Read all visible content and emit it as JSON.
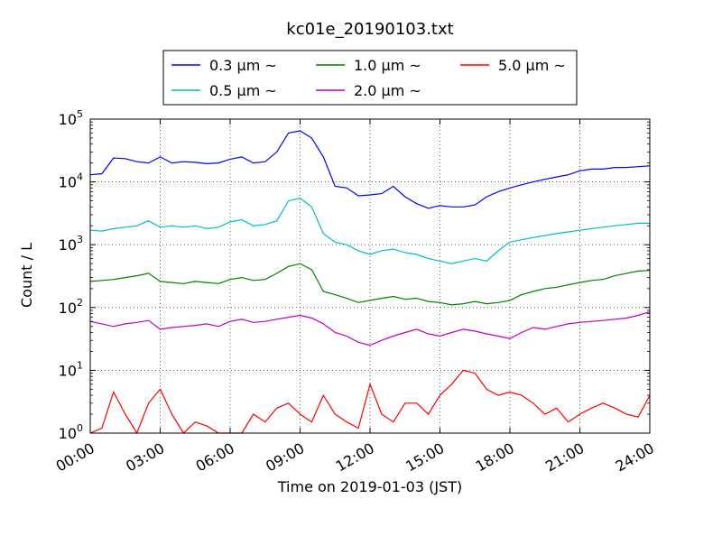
{
  "chart_data": {
    "type": "line",
    "title": "kc01e_20190103.txt",
    "xlabel": "Time on 2019-01-03 (JST)",
    "ylabel": "Count / L",
    "yscale": "log",
    "ylim": [
      1,
      100000
    ],
    "xlim": [
      0,
      24
    ],
    "x_ticks": [
      {
        "value": 0,
        "label": "00:00"
      },
      {
        "value": 3,
        "label": "03:00"
      },
      {
        "value": 6,
        "label": "06:00"
      },
      {
        "value": 9,
        "label": "09:00"
      },
      {
        "value": 12,
        "label": "12:00"
      },
      {
        "value": 15,
        "label": "15:00"
      },
      {
        "value": 18,
        "label": "18:00"
      },
      {
        "value": 21,
        "label": "21:00"
      },
      {
        "value": 24,
        "label": "24:00"
      }
    ],
    "y_ticks": [
      {
        "value": 1,
        "base": "10",
        "exp": "0"
      },
      {
        "value": 10,
        "base": "10",
        "exp": "1"
      },
      {
        "value": 100,
        "base": "10",
        "exp": "2"
      },
      {
        "value": 1000,
        "base": "10",
        "exp": "3"
      },
      {
        "value": 10000,
        "base": "10",
        "exp": "4"
      },
      {
        "value": 100000,
        "base": "10",
        "exp": "5"
      }
    ],
    "grid": true,
    "legend": {
      "placement": "top-center",
      "columns": 3,
      "suffix": "~"
    },
    "series": [
      {
        "name": "0.3 μm",
        "color": "#0000ff",
        "x": [
          0,
          0.5,
          1,
          1.5,
          2,
          2.5,
          3,
          3.5,
          4,
          4.5,
          5,
          5.5,
          6,
          6.5,
          7,
          7.5,
          8,
          8.5,
          9,
          9.5,
          10,
          10.5,
          11,
          11.5,
          12,
          12.5,
          13,
          13.5,
          14,
          14.5,
          15,
          15.5,
          16,
          16.5,
          17,
          17.5,
          18,
          18.5,
          19,
          19.5,
          20,
          20.5,
          21,
          21.5,
          22,
          22.5,
          23,
          23.5,
          24
        ],
        "y": [
          13000,
          13500,
          24000,
          23500,
          21000,
          20000,
          25000,
          20000,
          21000,
          20500,
          19500,
          20000,
          23000,
          25000,
          20000,
          21000,
          30000,
          60000,
          65000,
          50000,
          25000,
          8500,
          8000,
          6000,
          6200,
          6500,
          8500,
          5800,
          4500,
          3800,
          4200,
          4000,
          4000,
          4300,
          5800,
          7000,
          8000,
          9000,
          10000,
          11000,
          12000,
          13000,
          15000,
          16000,
          16000,
          17000,
          17000,
          17500,
          18000
        ]
      },
      {
        "name": "0.5 μm",
        "color": "#00bfbf",
        "x": [
          0,
          0.5,
          1,
          1.5,
          2,
          2.5,
          3,
          3.5,
          4,
          4.5,
          5,
          5.5,
          6,
          6.5,
          7,
          7.5,
          8,
          8.5,
          9,
          9.5,
          10,
          10.5,
          11,
          11.5,
          12,
          12.5,
          13,
          13.5,
          14,
          14.5,
          15,
          15.5,
          16,
          16.5,
          17,
          17.5,
          18,
          18.5,
          19,
          19.5,
          20,
          20.5,
          21,
          21.5,
          22,
          22.5,
          23,
          23.5,
          24
        ],
        "y": [
          1700,
          1650,
          1800,
          1900,
          2000,
          2400,
          1900,
          2000,
          1900,
          2000,
          1800,
          1900,
          2300,
          2500,
          2000,
          2100,
          2400,
          5000,
          5500,
          4000,
          1500,
          1100,
          1000,
          800,
          700,
          800,
          850,
          750,
          700,
          600,
          550,
          500,
          550,
          600,
          550,
          800,
          1100,
          1200,
          1300,
          1400,
          1500,
          1600,
          1700,
          1800,
          1900,
          2000,
          2100,
          2200,
          2200
        ]
      },
      {
        "name": "1.0 μm",
        "color": "#008000",
        "x": [
          0,
          0.5,
          1,
          1.5,
          2,
          2.5,
          3,
          3.5,
          4,
          4.5,
          5,
          5.5,
          6,
          6.5,
          7,
          7.5,
          8,
          8.5,
          9,
          9.5,
          10,
          10.5,
          11,
          11.5,
          12,
          12.5,
          13,
          13.5,
          14,
          14.5,
          15,
          15.5,
          16,
          16.5,
          17,
          17.5,
          18,
          18.5,
          19,
          19.5,
          20,
          20.5,
          21,
          21.5,
          22,
          22.5,
          23,
          23.5,
          24
        ],
        "y": [
          260,
          270,
          280,
          300,
          320,
          350,
          260,
          250,
          240,
          260,
          250,
          240,
          280,
          300,
          270,
          280,
          350,
          450,
          500,
          400,
          180,
          160,
          140,
          120,
          130,
          140,
          150,
          135,
          140,
          125,
          120,
          110,
          115,
          125,
          115,
          120,
          130,
          160,
          180,
          200,
          210,
          230,
          250,
          270,
          280,
          320,
          350,
          380,
          390
        ]
      },
      {
        "name": "2.0 μm",
        "color": "#bf00bf",
        "x": [
          0,
          0.5,
          1,
          1.5,
          2,
          2.5,
          3,
          3.5,
          4,
          4.5,
          5,
          5.5,
          6,
          6.5,
          7,
          7.5,
          8,
          8.5,
          9,
          9.5,
          10,
          10.5,
          11,
          11.5,
          12,
          12.5,
          13,
          13.5,
          14,
          14.5,
          15,
          15.5,
          16,
          16.5,
          17,
          17.5,
          18,
          18.5,
          19,
          19.5,
          20,
          20.5,
          21,
          21.5,
          22,
          22.5,
          23,
          23.5,
          24
        ],
        "y": [
          60,
          55,
          50,
          55,
          58,
          62,
          45,
          48,
          50,
          52,
          55,
          50,
          60,
          65,
          58,
          60,
          65,
          70,
          75,
          68,
          55,
          40,
          35,
          28,
          25,
          30,
          35,
          40,
          45,
          38,
          35,
          40,
          45,
          42,
          38,
          35,
          32,
          40,
          48,
          45,
          50,
          55,
          58,
          60,
          62,
          65,
          68,
          75,
          85
        ]
      },
      {
        "name": "5.0 μm",
        "color": "#ff0000",
        "x": [
          0,
          0.5,
          1,
          1.5,
          2,
          2.5,
          3,
          3.5,
          4,
          4.5,
          5,
          5.5,
          6,
          6.5,
          7,
          7.5,
          8,
          8.5,
          9,
          9.5,
          10,
          10.5,
          11,
          11.5,
          12,
          12.5,
          13,
          13.5,
          14,
          14.5,
          15,
          15.5,
          16,
          16.5,
          17,
          17.5,
          18,
          18.5,
          19,
          19.5,
          20,
          20.5,
          21,
          21.5,
          22,
          22.5,
          23,
          23.5,
          24
        ],
        "y": [
          1,
          1.2,
          4.5,
          2,
          1,
          3,
          5,
          2,
          1,
          1.5,
          1.3,
          1,
          1,
          1,
          2,
          1.5,
          2.5,
          3,
          2,
          1.5,
          4,
          2,
          1.5,
          1.2,
          6,
          2,
          1.5,
          3,
          3,
          2,
          4,
          6,
          10,
          9,
          5,
          4,
          4.5,
          4,
          3,
          2,
          2.5,
          1.5,
          2,
          2.5,
          3,
          2.5,
          2,
          1.8,
          4
        ]
      }
    ]
  }
}
